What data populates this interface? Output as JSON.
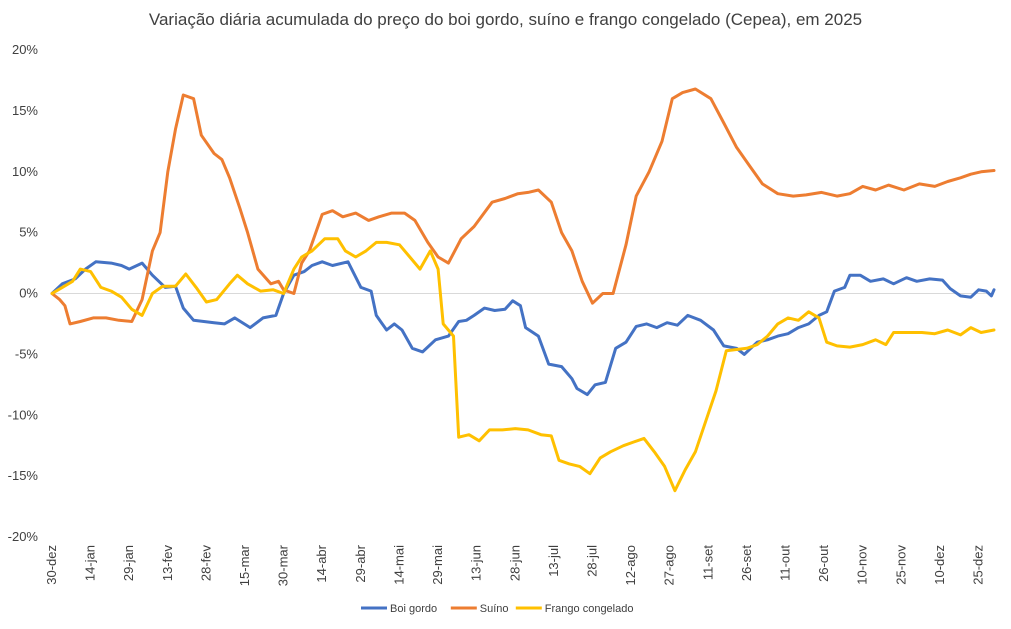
{
  "chart_data": {
    "type": "line",
    "title": "Variação diária acumulada do preço do boi gordo, suíno e frango congelado (Cepea), em 2025",
    "xlabel": "",
    "ylabel": "",
    "ylim": [
      -20,
      20
    ],
    "yticks": [
      20,
      15,
      10,
      5,
      0,
      -5,
      -10,
      -15,
      -20
    ],
    "ytick_labels": [
      "20%",
      "15%",
      "10%",
      "5%",
      "0%",
      "-5%",
      "-10%",
      "-15%",
      "-20%"
    ],
    "x_range": [
      "2024-12-30",
      "2025-12-31"
    ],
    "xtick_labels": [
      "30-dez",
      "14-jan",
      "29-jan",
      "13-fev",
      "28-fev",
      "15-mar",
      "30-mar",
      "14-abr",
      "29-abr",
      "14-mai",
      "29-mai",
      "13-jun",
      "28-jun",
      "13-jul",
      "28-jul",
      "12-ago",
      "27-ago",
      "11-set",
      "26-set",
      "11-out",
      "26-out",
      "10-nov",
      "25-nov",
      "10-dez",
      "25-dez"
    ],
    "grid": false,
    "zero_line": true,
    "legend_position": "bottom",
    "series": [
      {
        "name": "Boi gordo",
        "color": "#4472C4",
        "points": [
          [
            "2024-12-30",
            0
          ],
          [
            "2025-01-03",
            0.8
          ],
          [
            "2025-01-08",
            1.2
          ],
          [
            "2025-01-12",
            2.0
          ],
          [
            "2025-01-16",
            2.6
          ],
          [
            "2025-01-22",
            2.5
          ],
          [
            "2025-01-26",
            2.3
          ],
          [
            "2025-01-29",
            2.0
          ],
          [
            "2025-02-03",
            2.5
          ],
          [
            "2025-02-07",
            1.5
          ],
          [
            "2025-02-12",
            0.5
          ],
          [
            "2025-02-16",
            0.6
          ],
          [
            "2025-02-19",
            -1.2
          ],
          [
            "2025-02-23",
            -2.2
          ],
          [
            "2025-03-03",
            -2.4
          ],
          [
            "2025-03-07",
            -2.5
          ],
          [
            "2025-03-11",
            -2.0
          ],
          [
            "2025-03-17",
            -2.8
          ],
          [
            "2025-03-22",
            -2.0
          ],
          [
            "2025-03-27",
            -1.8
          ],
          [
            "2025-03-30",
            0.0
          ],
          [
            "2025-04-03",
            1.5
          ],
          [
            "2025-04-07",
            1.8
          ],
          [
            "2025-04-10",
            2.3
          ],
          [
            "2025-04-14",
            2.6
          ],
          [
            "2025-04-18",
            2.3
          ],
          [
            "2025-04-24",
            2.6
          ],
          [
            "2025-04-29",
            0.5
          ],
          [
            "2025-05-03",
            0.2
          ],
          [
            "2025-05-05",
            -1.8
          ],
          [
            "2025-05-09",
            -3.0
          ],
          [
            "2025-05-12",
            -2.5
          ],
          [
            "2025-05-15",
            -3.0
          ],
          [
            "2025-05-19",
            -4.5
          ],
          [
            "2025-05-23",
            -4.8
          ],
          [
            "2025-05-28",
            -3.8
          ],
          [
            "2025-06-02",
            -3.5
          ],
          [
            "2025-06-06",
            -2.3
          ],
          [
            "2025-06-09",
            -2.2
          ],
          [
            "2025-06-12",
            -1.8
          ],
          [
            "2025-06-16",
            -1.2
          ],
          [
            "2025-06-20",
            -1.4
          ],
          [
            "2025-06-24",
            -1.3
          ],
          [
            "2025-06-27",
            -0.6
          ],
          [
            "2025-06-30",
            -1.0
          ],
          [
            "2025-07-02",
            -2.8
          ],
          [
            "2025-07-07",
            -3.5
          ],
          [
            "2025-07-11",
            -5.8
          ],
          [
            "2025-07-16",
            -6.0
          ],
          [
            "2025-07-20",
            -7.0
          ],
          [
            "2025-07-22",
            -7.8
          ],
          [
            "2025-07-26",
            -8.3
          ],
          [
            "2025-07-29",
            -7.5
          ],
          [
            "2025-08-02",
            -7.3
          ],
          [
            "2025-08-06",
            -4.5
          ],
          [
            "2025-08-10",
            -4.0
          ],
          [
            "2025-08-14",
            -2.7
          ],
          [
            "2025-08-18",
            -2.5
          ],
          [
            "2025-08-22",
            -2.8
          ],
          [
            "2025-08-26",
            -2.4
          ],
          [
            "2025-08-30",
            -2.6
          ],
          [
            "2025-09-03",
            -1.8
          ],
          [
            "2025-09-08",
            -2.2
          ],
          [
            "2025-09-13",
            -3.0
          ],
          [
            "2025-09-17",
            -4.3
          ],
          [
            "2025-09-22",
            -4.5
          ],
          [
            "2025-09-25",
            -5.0
          ],
          [
            "2025-09-30",
            -4.0
          ],
          [
            "2025-10-04",
            -3.8
          ],
          [
            "2025-10-08",
            -3.5
          ],
          [
            "2025-10-12",
            -3.3
          ],
          [
            "2025-10-16",
            -2.8
          ],
          [
            "2025-10-20",
            -2.5
          ],
          [
            "2025-10-24",
            -1.8
          ],
          [
            "2025-10-27",
            -1.5
          ],
          [
            "2025-10-30",
            0.2
          ],
          [
            "2025-11-03",
            0.5
          ],
          [
            "2025-11-05",
            1.5
          ],
          [
            "2025-11-09",
            1.5
          ],
          [
            "2025-11-13",
            1.0
          ],
          [
            "2025-11-18",
            1.2
          ],
          [
            "2025-11-22",
            0.8
          ],
          [
            "2025-11-27",
            1.3
          ],
          [
            "2025-12-01",
            1.0
          ],
          [
            "2025-12-06",
            1.2
          ],
          [
            "2025-12-11",
            1.1
          ],
          [
            "2025-12-14",
            0.4
          ],
          [
            "2025-12-18",
            -0.2
          ],
          [
            "2025-12-22",
            -0.3
          ],
          [
            "2025-12-25",
            0.3
          ],
          [
            "2025-12-28",
            0.2
          ],
          [
            "2025-12-30",
            -0.2
          ],
          [
            "2025-12-31",
            0.3
          ]
        ]
      },
      {
        "name": "Suíno",
        "color": "#ED7D31",
        "points": [
          [
            "2024-12-30",
            0
          ],
          [
            "2025-01-02",
            -0.5
          ],
          [
            "2025-01-04",
            -1.0
          ],
          [
            "2025-01-06",
            -2.5
          ],
          [
            "2025-01-10",
            -2.3
          ],
          [
            "2025-01-15",
            -2.0
          ],
          [
            "2025-01-20",
            -2.0
          ],
          [
            "2025-01-25",
            -2.2
          ],
          [
            "2025-01-30",
            -2.3
          ],
          [
            "2025-02-03",
            -0.5
          ],
          [
            "2025-02-07",
            3.5
          ],
          [
            "2025-02-10",
            5.0
          ],
          [
            "2025-02-13",
            10.0
          ],
          [
            "2025-02-16",
            13.5
          ],
          [
            "2025-02-19",
            16.3
          ],
          [
            "2025-02-23",
            16.0
          ],
          [
            "2025-02-26",
            13.0
          ],
          [
            "2025-03-03",
            11.5
          ],
          [
            "2025-03-06",
            11.0
          ],
          [
            "2025-03-09",
            9.5
          ],
          [
            "2025-03-13",
            7.0
          ],
          [
            "2025-03-16",
            5.0
          ],
          [
            "2025-03-20",
            2.0
          ],
          [
            "2025-03-25",
            0.8
          ],
          [
            "2025-03-28",
            1.0
          ],
          [
            "2025-03-30",
            0.3
          ],
          [
            "2025-04-03",
            0.0
          ],
          [
            "2025-04-06",
            2.5
          ],
          [
            "2025-04-09",
            3.5
          ],
          [
            "2025-04-14",
            6.5
          ],
          [
            "2025-04-18",
            6.8
          ],
          [
            "2025-04-22",
            6.3
          ],
          [
            "2025-04-27",
            6.6
          ],
          [
            "2025-05-02",
            6.0
          ],
          [
            "2025-05-06",
            6.3
          ],
          [
            "2025-05-11",
            6.6
          ],
          [
            "2025-05-16",
            6.6
          ],
          [
            "2025-05-20",
            6.0
          ],
          [
            "2025-05-25",
            4.2
          ],
          [
            "2025-05-29",
            3.0
          ],
          [
            "2025-06-02",
            2.5
          ],
          [
            "2025-06-07",
            4.5
          ],
          [
            "2025-06-12",
            5.5
          ],
          [
            "2025-06-19",
            7.5
          ],
          [
            "2025-06-24",
            7.8
          ],
          [
            "2025-06-29",
            8.2
          ],
          [
            "2025-07-03",
            8.3
          ],
          [
            "2025-07-07",
            8.5
          ],
          [
            "2025-07-12",
            7.5
          ],
          [
            "2025-07-16",
            5.0
          ],
          [
            "2025-07-20",
            3.5
          ],
          [
            "2025-07-24",
            1.0
          ],
          [
            "2025-07-28",
            -0.8
          ],
          [
            "2025-08-01",
            0.0
          ],
          [
            "2025-08-05",
            0.0
          ],
          [
            "2025-08-10",
            4.0
          ],
          [
            "2025-08-14",
            8.0
          ],
          [
            "2025-08-19",
            10.0
          ],
          [
            "2025-08-24",
            12.5
          ],
          [
            "2025-08-28",
            16.0
          ],
          [
            "2025-09-01",
            16.5
          ],
          [
            "2025-09-06",
            16.8
          ],
          [
            "2025-09-12",
            16.0
          ],
          [
            "2025-09-17",
            14.0
          ],
          [
            "2025-09-22",
            12.0
          ],
          [
            "2025-09-27",
            10.5
          ],
          [
            "2025-10-02",
            9.0
          ],
          [
            "2025-10-08",
            8.2
          ],
          [
            "2025-10-14",
            8.0
          ],
          [
            "2025-10-19",
            8.1
          ],
          [
            "2025-10-25",
            8.3
          ],
          [
            "2025-10-31",
            8.0
          ],
          [
            "2025-11-05",
            8.2
          ],
          [
            "2025-11-10",
            8.8
          ],
          [
            "2025-11-15",
            8.5
          ],
          [
            "2025-11-20",
            8.9
          ],
          [
            "2025-11-26",
            8.5
          ],
          [
            "2025-12-02",
            9.0
          ],
          [
            "2025-12-08",
            8.8
          ],
          [
            "2025-12-13",
            9.2
          ],
          [
            "2025-12-18",
            9.5
          ],
          [
            "2025-12-22",
            9.8
          ],
          [
            "2025-12-26",
            10.0
          ],
          [
            "2025-12-31",
            10.1
          ]
        ]
      },
      {
        "name": "Frango congelado",
        "color": "#FFC000",
        "points": [
          [
            "2024-12-30",
            0
          ],
          [
            "2025-01-03",
            0.5
          ],
          [
            "2025-01-07",
            1.0
          ],
          [
            "2025-01-10",
            2.0
          ],
          [
            "2025-01-14",
            1.8
          ],
          [
            "2025-01-18",
            0.5
          ],
          [
            "2025-01-22",
            0.2
          ],
          [
            "2025-01-26",
            -0.3
          ],
          [
            "2025-01-30",
            -1.3
          ],
          [
            "2025-02-03",
            -1.8
          ],
          [
            "2025-02-07",
            0.0
          ],
          [
            "2025-02-11",
            0.6
          ],
          [
            "2025-02-16",
            0.6
          ],
          [
            "2025-02-20",
            1.6
          ],
          [
            "2025-02-24",
            0.5
          ],
          [
            "2025-02-28",
            -0.7
          ],
          [
            "2025-03-04",
            -0.5
          ],
          [
            "2025-03-09",
            0.8
          ],
          [
            "2025-03-12",
            1.5
          ],
          [
            "2025-03-16",
            0.8
          ],
          [
            "2025-03-21",
            0.2
          ],
          [
            "2025-03-26",
            0.3
          ],
          [
            "2025-03-30",
            0.0
          ],
          [
            "2025-04-03",
            2.0
          ],
          [
            "2025-04-06",
            3.0
          ],
          [
            "2025-04-10",
            3.5
          ],
          [
            "2025-04-15",
            4.5
          ],
          [
            "2025-04-20",
            4.5
          ],
          [
            "2025-04-23",
            3.5
          ],
          [
            "2025-04-27",
            3.0
          ],
          [
            "2025-05-01",
            3.5
          ],
          [
            "2025-05-05",
            4.2
          ],
          [
            "2025-05-09",
            4.2
          ],
          [
            "2025-05-14",
            4.0
          ],
          [
            "2025-05-18",
            3.0
          ],
          [
            "2025-05-22",
            2.0
          ],
          [
            "2025-05-26",
            3.5
          ],
          [
            "2025-05-29",
            2.0
          ],
          [
            "2025-05-31",
            -2.5
          ],
          [
            "2025-06-04",
            -3.5
          ],
          [
            "2025-06-06",
            -11.8
          ],
          [
            "2025-06-10",
            -11.6
          ],
          [
            "2025-06-14",
            -12.1
          ],
          [
            "2025-06-18",
            -11.2
          ],
          [
            "2025-06-23",
            -11.2
          ],
          [
            "2025-06-28",
            -11.1
          ],
          [
            "2025-07-03",
            -11.2
          ],
          [
            "2025-07-08",
            -11.6
          ],
          [
            "2025-07-12",
            -11.7
          ],
          [
            "2025-07-15",
            -13.7
          ],
          [
            "2025-07-19",
            -14.0
          ],
          [
            "2025-07-23",
            -14.2
          ],
          [
            "2025-07-27",
            -14.8
          ],
          [
            "2025-07-31",
            -13.5
          ],
          [
            "2025-08-04",
            -13.0
          ],
          [
            "2025-08-09",
            -12.5
          ],
          [
            "2025-08-13",
            -12.2
          ],
          [
            "2025-08-17",
            -11.9
          ],
          [
            "2025-08-21",
            -13.0
          ],
          [
            "2025-08-25",
            -14.2
          ],
          [
            "2025-08-29",
            -16.2
          ],
          [
            "2025-09-02",
            -14.5
          ],
          [
            "2025-09-06",
            -13.0
          ],
          [
            "2025-09-10",
            -10.5
          ],
          [
            "2025-09-14",
            -8.0
          ],
          [
            "2025-09-18",
            -4.7
          ],
          [
            "2025-09-22",
            -4.6
          ],
          [
            "2025-09-26",
            -4.5
          ],
          [
            "2025-09-30",
            -4.2
          ],
          [
            "2025-10-04",
            -3.5
          ],
          [
            "2025-10-08",
            -2.5
          ],
          [
            "2025-10-12",
            -2.0
          ],
          [
            "2025-10-16",
            -2.2
          ],
          [
            "2025-10-20",
            -1.5
          ],
          [
            "2025-10-24",
            -2.0
          ],
          [
            "2025-10-27",
            -4.0
          ],
          [
            "2025-10-31",
            -4.3
          ],
          [
            "2025-11-05",
            -4.4
          ],
          [
            "2025-11-10",
            -4.2
          ],
          [
            "2025-11-15",
            -3.8
          ],
          [
            "2025-11-19",
            -4.2
          ],
          [
            "2025-11-22",
            -3.2
          ],
          [
            "2025-11-28",
            -3.2
          ],
          [
            "2025-12-03",
            -3.2
          ],
          [
            "2025-12-08",
            -3.3
          ],
          [
            "2025-12-13",
            -3.0
          ],
          [
            "2025-12-18",
            -3.4
          ],
          [
            "2025-12-22",
            -2.8
          ],
          [
            "2025-12-26",
            -3.2
          ],
          [
            "2025-12-31",
            -3.0
          ]
        ]
      }
    ]
  }
}
